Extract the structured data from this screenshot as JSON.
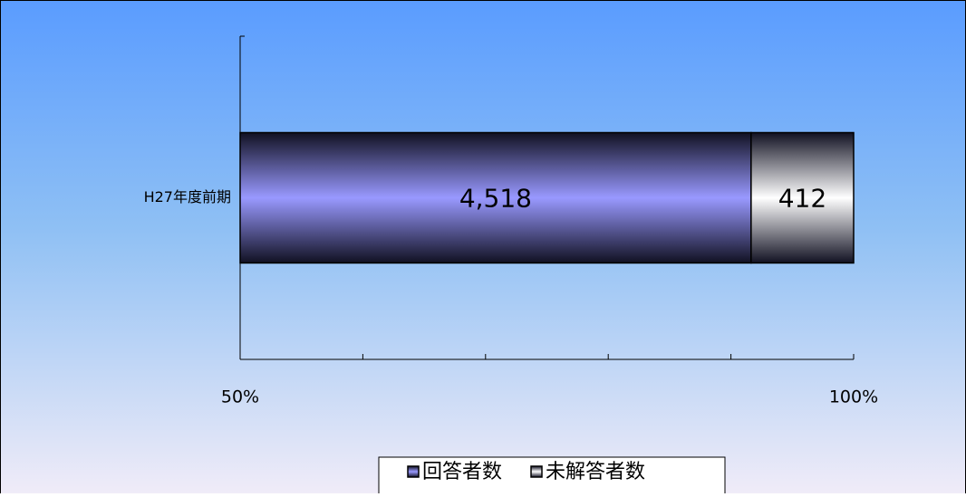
{
  "chart_data": {
    "type": "stacked_bar_percent",
    "orientation": "horizontal",
    "categories": [
      "H27年度前期"
    ],
    "series": [
      {
        "name": "回答者数",
        "color": "#9999ff",
        "values": [
          4518
        ],
        "value_labels": [
          "4,518"
        ]
      },
      {
        "name": "未解答者数",
        "color": "#ffffff",
        "values": [
          412
        ]
      }
    ],
    "xlim": [
      50,
      100
    ],
    "xticks": [
      {
        "value": 50,
        "label": "50%"
      },
      {
        "value": 100,
        "label": "100%"
      }
    ],
    "xminor_ticks": [
      60,
      70,
      80,
      90
    ],
    "legend": "bottom"
  }
}
